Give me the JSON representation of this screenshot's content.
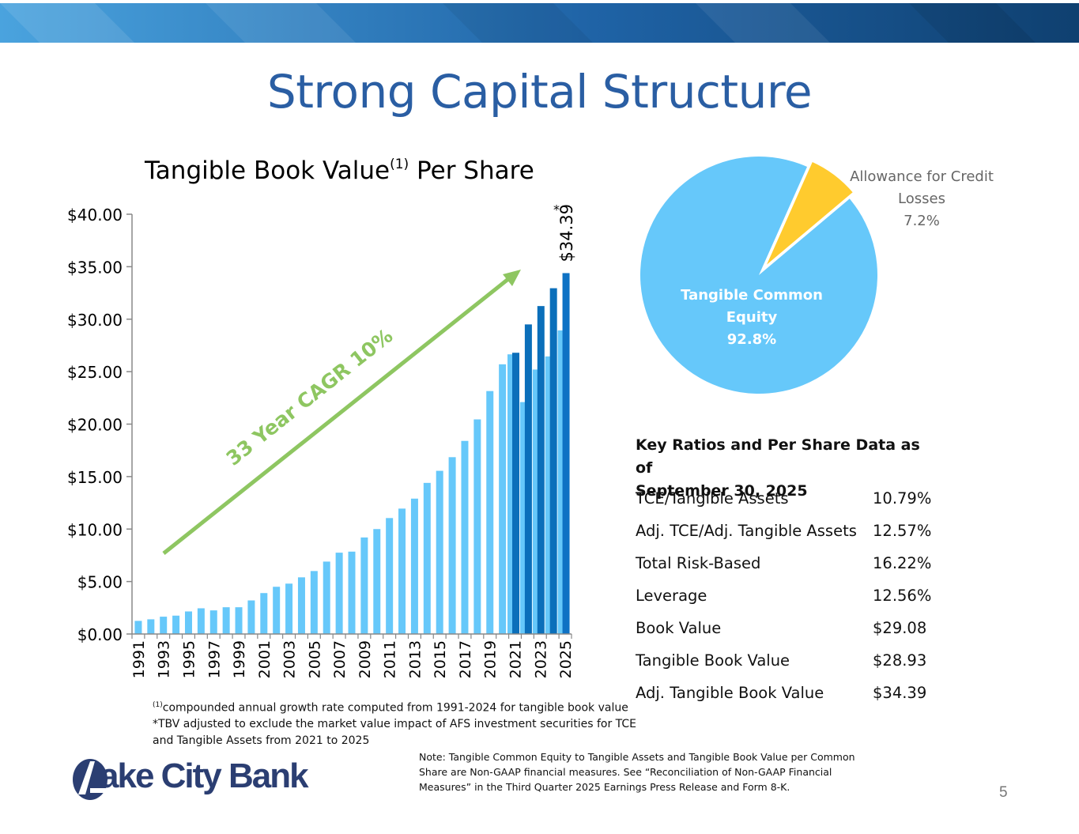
{
  "slide": {
    "title": "Strong Capital Structure",
    "page_number": "5"
  },
  "colors": {
    "title": "#2a5ea3",
    "bar_light": "#66c8fa",
    "bar_dark": "#0b6fba",
    "bar_dark_tallest": "#0f72c4",
    "arrow": "#8ec661",
    "pie_main": "#66c8fa",
    "pie_slice": "#ffcb2e",
    "logo": "#2b3e72"
  },
  "chart_data": [
    {
      "type": "bar",
      "title": "Tangible Book Value",
      "title_superscript": "(1)",
      "title_suffix": "Per Share",
      "x_tick_labels": [
        "1991",
        "1993",
        "1995",
        "1997",
        "1999",
        "2001",
        "2003",
        "2005",
        "2007",
        "2009",
        "2011",
        "2013",
        "2015",
        "2017",
        "2019",
        "2021",
        "2023",
        "2025"
      ],
      "y_tick_labels": [
        "$0.00",
        "$5.00",
        "$10.00",
        "$15.00",
        "$20.00",
        "$25.00",
        "$30.00",
        "$35.00",
        "$40.00"
      ],
      "ylim": [
        0,
        40
      ],
      "series": [
        {
          "x": [
            1991,
            1992,
            1993,
            1994,
            1995,
            1996,
            1997,
            1998,
            1999,
            2000,
            2001,
            2002,
            2003,
            2004,
            2005,
            2006,
            2007,
            2008,
            2009,
            2010,
            2011,
            2012,
            2013,
            2014,
            2015,
            2016,
            2017,
            2018,
            2019,
            2020,
            2021,
            2022,
            2023,
            2024,
            2025
          ],
          "values": [
            1.25,
            1.4,
            1.65,
            1.75,
            2.15,
            2.45,
            2.25,
            2.55,
            2.55,
            3.2,
            3.9,
            4.5,
            4.8,
            5.4,
            6.0,
            6.9,
            7.75,
            7.85,
            9.2,
            10.0,
            11.05,
            11.95,
            12.9,
            14.4,
            15.55,
            16.85,
            18.4,
            20.45,
            23.15,
            25.7,
            26.65,
            22.1,
            25.2,
            26.45,
            28.93
          ],
          "color": "light"
        },
        {
          "x": [
            2021,
            2022,
            2023,
            2024,
            2025
          ],
          "values": [
            26.8,
            29.5,
            31.25,
            32.95,
            34.39
          ],
          "color": "dark"
        }
      ],
      "annotations": {
        "last_value_label": "$34.39",
        "asterisk": "*",
        "cagr_label": "33 Year CAGR 10%"
      }
    },
    {
      "type": "pie",
      "slices": [
        {
          "label_line1": "Tangible Common",
          "label_line2": "Equity",
          "value_label": "92.8%",
          "value": 92.8,
          "color": "#66c8fa"
        },
        {
          "label_line1": "Allowance for Credit",
          "label_line2": "Losses",
          "value_label": "7.2%",
          "value": 7.2,
          "color": "#ffcb2e"
        }
      ]
    }
  ],
  "footnotes": {
    "f1_sup": "(1)",
    "f1_text": "compounded annual growth rate computed from 1991-2024 for tangible book value",
    "f2_line1": "*TBV adjusted to exclude the market value impact of AFS investment securities for TCE",
    "f2_line2": "and Tangible Assets from 2021 to 2025"
  },
  "ratios": {
    "title_line1": "Key Ratios and Per Share Data as of",
    "title_line2": "September 30, 2025",
    "rows": [
      {
        "label": "TCE/Tangible Assets",
        "value": "10.79%"
      },
      {
        "label": "Adj. TCE/Adj. Tangible Assets",
        "value": "12.57%"
      },
      {
        "label": "Total Risk-Based",
        "value": "16.22%"
      },
      {
        "label": "Leverage",
        "value": "12.56%"
      },
      {
        "label": "Book Value",
        "value": "$29.08"
      },
      {
        "label": "Tangible Book Value",
        "value": "$28.93"
      },
      {
        "label": "Adj. Tangible Book Value",
        "value": "$34.39"
      }
    ]
  },
  "note": {
    "line1": "Note: Tangible Common Equity to Tangible Assets and Tangible Book Value per Common",
    "line2": "Share are Non-GAAP financial measures. See “Reconciliation of Non-GAAP Financial",
    "line3": "Measures” in the Third Quarter 2025 Earnings Press Release and Form 8-K."
  },
  "logo": {
    "text": "ake City Bank"
  }
}
